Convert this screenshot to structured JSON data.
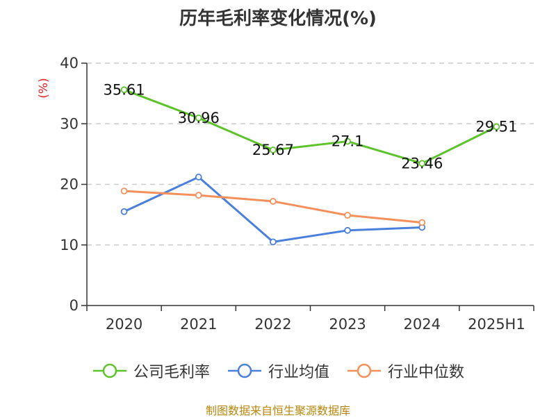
{
  "chart_data": {
    "type": "line",
    "title": "历年毛利率变化情况(%)",
    "ylabel": "(%)",
    "xlabel": "",
    "categories": [
      "2020",
      "2021",
      "2022",
      "2023",
      "2024",
      "2025H1"
    ],
    "ylim": [
      0,
      40
    ],
    "yticks": [
      0,
      10,
      20,
      30,
      40
    ],
    "grid": true,
    "legend_position": "bottom",
    "series": [
      {
        "name": "公司毛利率",
        "color": "#5ec32a",
        "values": [
          35.61,
          30.96,
          25.67,
          27.1,
          23.46,
          29.51
        ],
        "data_labels": [
          "35.61",
          "30.96",
          "25.67",
          "27.1",
          "23.46",
          "29.51"
        ]
      },
      {
        "name": "行业均值",
        "color": "#4a7fdc",
        "values": [
          15.5,
          21.2,
          10.5,
          12.4,
          12.9,
          null
        ]
      },
      {
        "name": "行业中位数",
        "color": "#f58f5b",
        "values": [
          18.9,
          18.2,
          17.2,
          14.9,
          13.7,
          null
        ]
      }
    ]
  },
  "source_note": "制图数据来自恒生聚源数据库"
}
